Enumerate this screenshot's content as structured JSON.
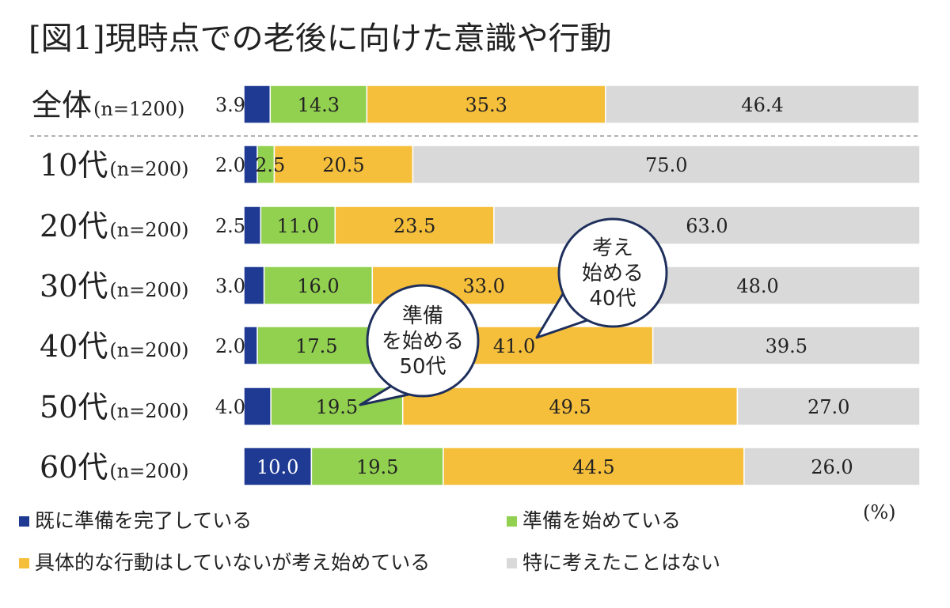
{
  "title": "[図1]現時点での老後に向けた意識や行動",
  "unit_label": "(%)",
  "colors": {
    "completed": "#1f3a93",
    "started": "#92d050",
    "thinking": "#f5bf3c",
    "none": "#d9d9d9",
    "bubble_border": "#1f2f5c",
    "separator": "#999999"
  },
  "chart_data": {
    "type": "bar",
    "orientation": "horizontal",
    "stacked": true,
    "normalized_percent": true,
    "unit": "%",
    "categories": [
      {
        "main": "全体",
        "n": "(n=1200)"
      },
      {
        "main": "10代",
        "n": "(n=200)"
      },
      {
        "main": "20代",
        "n": "(n=200)"
      },
      {
        "main": "30代",
        "n": "(n=200)"
      },
      {
        "main": "40代",
        "n": "(n=200)"
      },
      {
        "main": "50代",
        "n": "(n=200)"
      },
      {
        "main": "60代",
        "n": "(n=200)"
      }
    ],
    "series": [
      {
        "name": "既に準備を完了している",
        "color_key": "completed",
        "values": [
          3.9,
          2.0,
          2.5,
          3.0,
          2.0,
          4.0,
          10.0
        ]
      },
      {
        "name": "準備を始めている",
        "color_key": "started",
        "values": [
          14.3,
          2.5,
          11.0,
          16.0,
          17.5,
          19.5,
          19.5
        ]
      },
      {
        "name": "具体的な行動はしていないが考え始めている",
        "color_key": "thinking",
        "values": [
          35.3,
          20.5,
          23.5,
          33.0,
          41.0,
          49.5,
          44.5
        ]
      },
      {
        "name": "特に考えたことはない",
        "color_key": "none",
        "values": [
          46.4,
          75.0,
          63.0,
          48.0,
          39.5,
          27.0,
          26.0
        ]
      }
    ],
    "labels": [
      [
        "3.9",
        "14.3",
        "35.3",
        "46.4"
      ],
      [
        "2.0",
        "2.5",
        "20.5",
        "75.0"
      ],
      [
        "2.5",
        "11.0",
        "23.5",
        "63.0"
      ],
      [
        "3.0",
        "16.0",
        "33.0",
        "48.0"
      ],
      [
        "2.0",
        "17.5",
        "41.0",
        "39.5"
      ],
      [
        "4.0",
        "19.5",
        "49.5",
        "27.0"
      ],
      [
        "10.0",
        "19.5",
        "44.5",
        "26.0"
      ]
    ],
    "xlim": [
      0,
      100
    ],
    "grid": false,
    "legend_position": "bottom",
    "annotations": [
      {
        "lines": [
          "考え",
          "始める",
          "40代"
        ]
      },
      {
        "lines": [
          "準備",
          "を始める",
          "50代"
        ]
      }
    ]
  }
}
